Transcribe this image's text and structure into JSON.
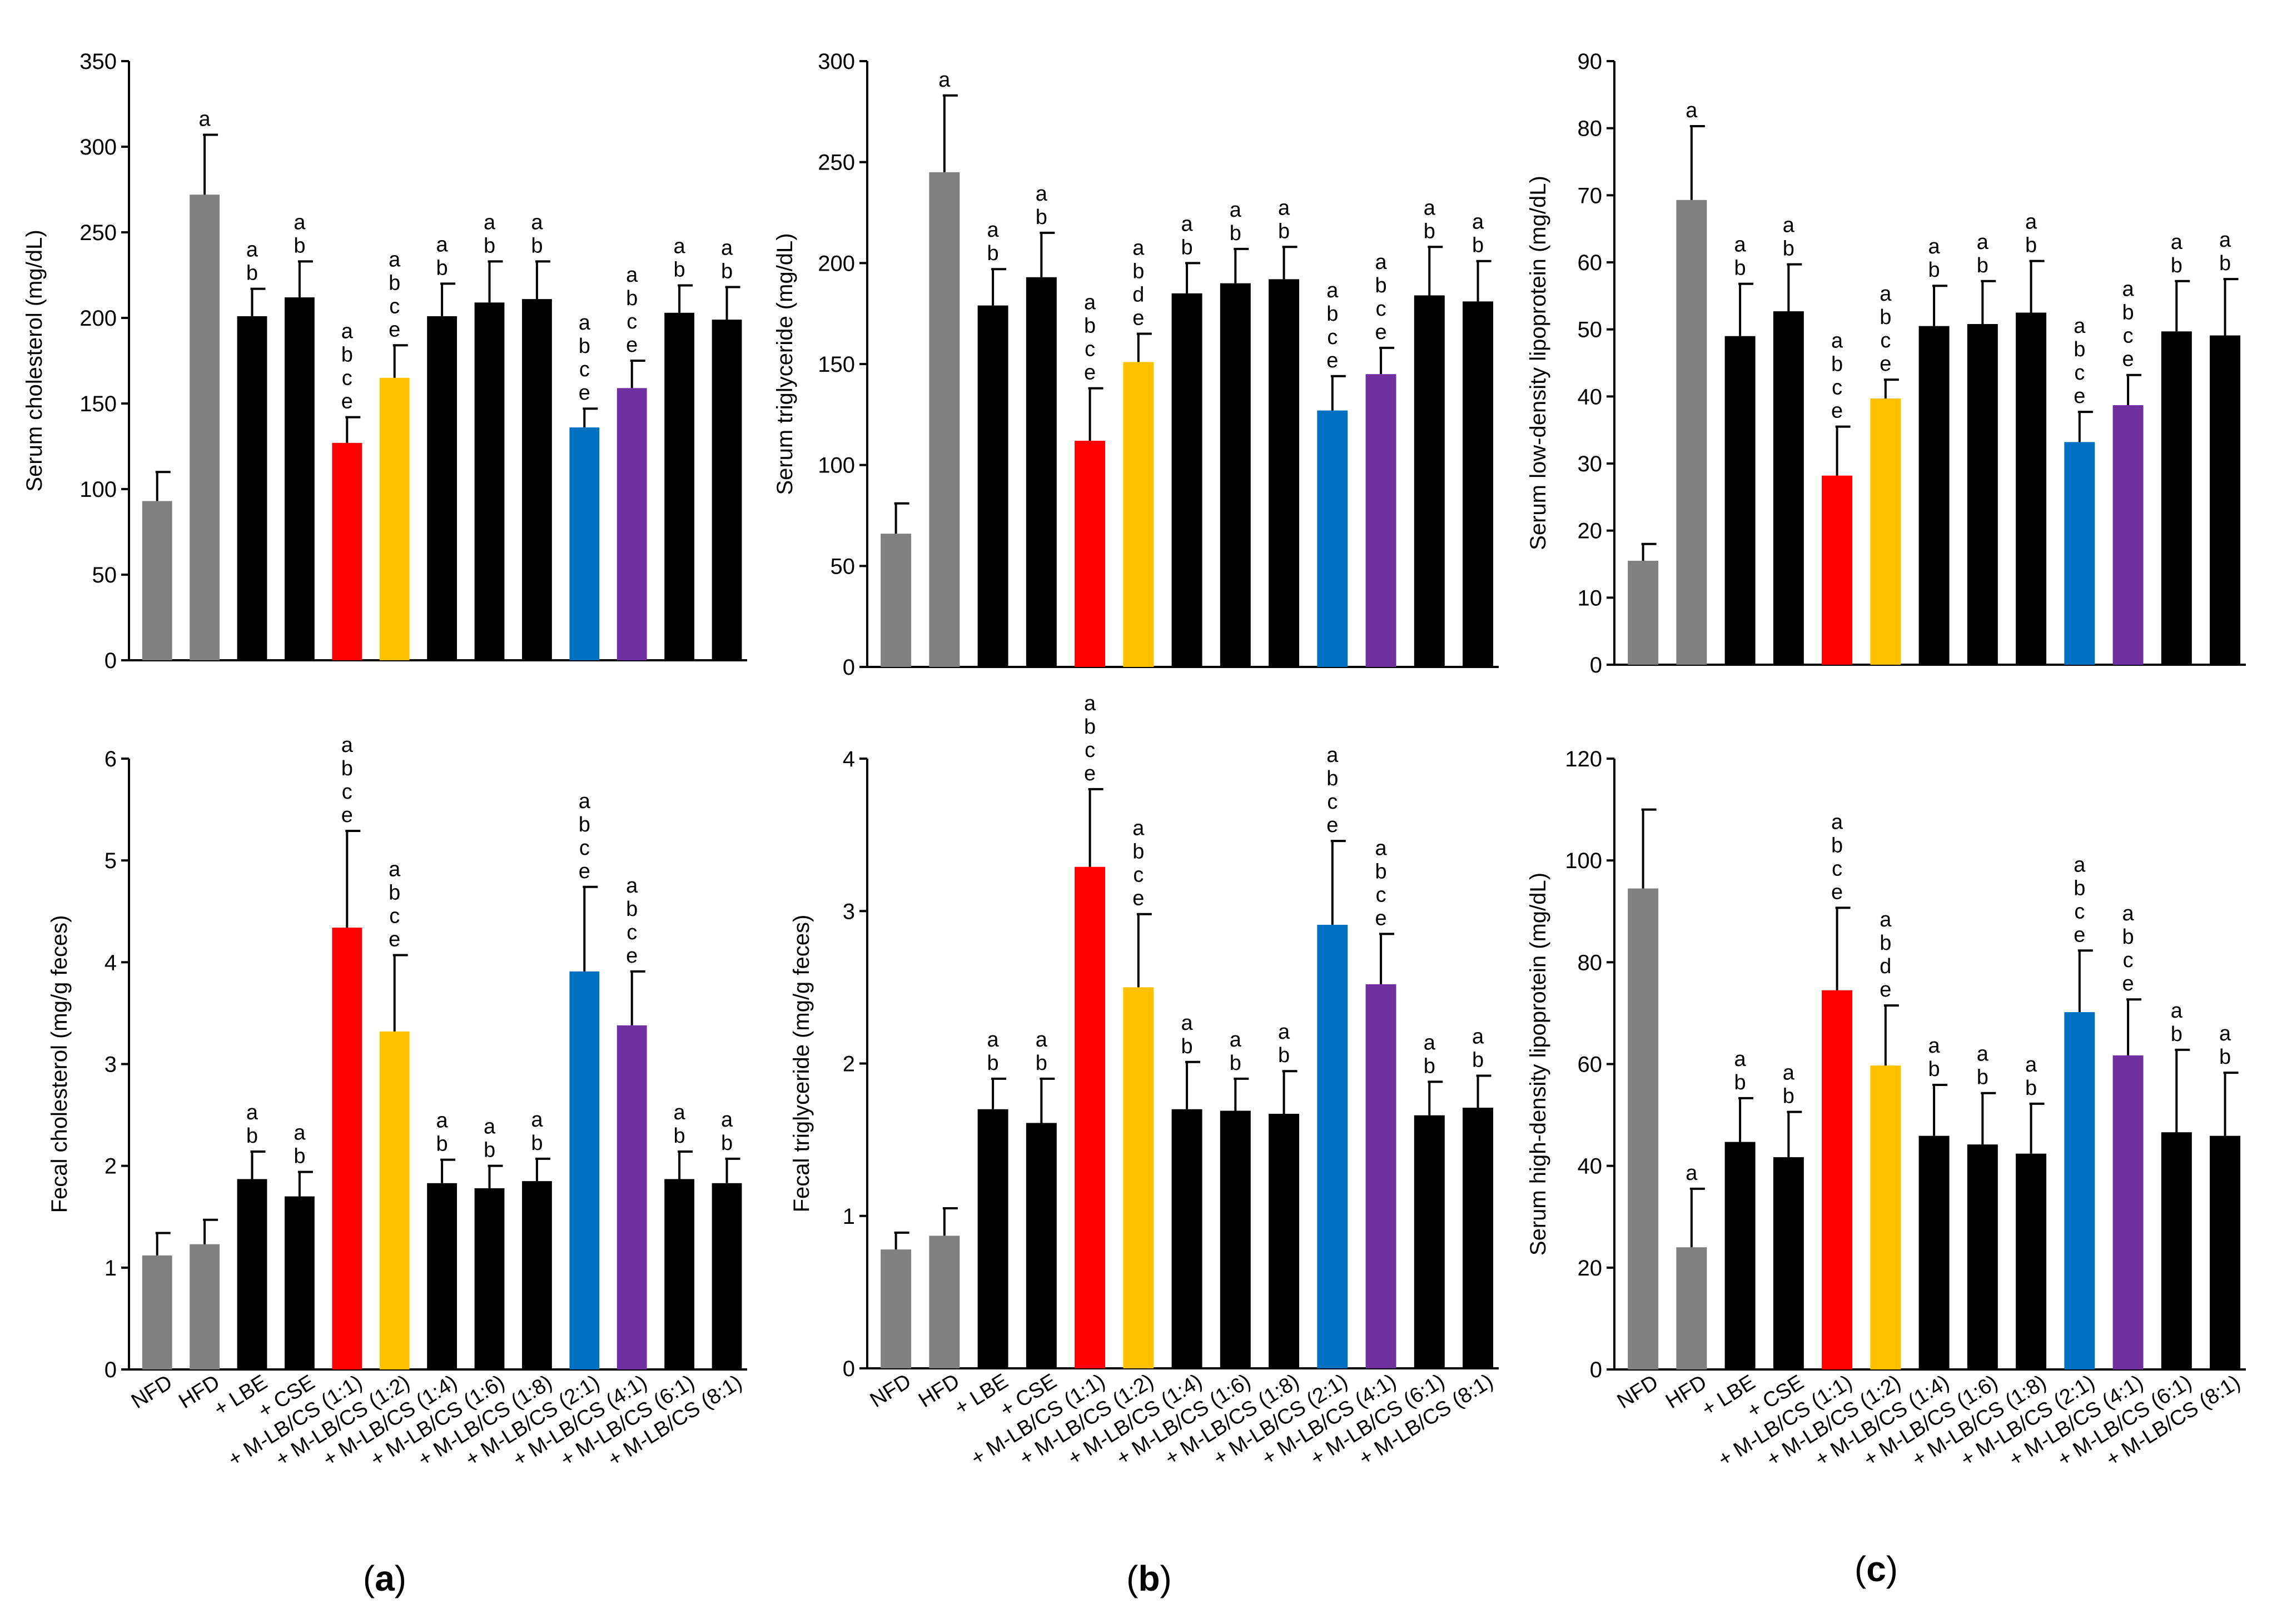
{
  "figure": {
    "categories": [
      "NFD",
      "HFD",
      "+ LBE",
      "+ CSE",
      "+ M-LB/CS (1:1)",
      "+ M-LB/CS (1:2)",
      "+ M-LB/CS (1:4)",
      "+ M-LB/CS (1:6)",
      "+ M-LB/CS (1:8)",
      "+ M-LB/CS (2:1)",
      "+ M-LB/CS (4:1)",
      "+ M-LB/CS (6:1)",
      "+ M-LB/CS (8:1)"
    ],
    "bar_colors": [
      "#808080",
      "#808080",
      "#000000",
      "#000000",
      "#ff0000",
      "#ffc000",
      "#000000",
      "#000000",
      "#000000",
      "#0070c0",
      "#7030a0",
      "#000000",
      "#000000"
    ],
    "panel_labels": [
      {
        "open": "(",
        "letter": "a",
        "close": ")"
      },
      {
        "open": "(",
        "letter": "b",
        "close": ")"
      },
      {
        "open": "(",
        "letter": "c",
        "close": ")"
      }
    ]
  },
  "chart_data": [
    {
      "type": "bar",
      "title": "",
      "xlabel": "",
      "ylabel": "Serum cholesterol (mg/dL)",
      "ylim": [
        0,
        350
      ],
      "yticks": [
        0,
        50,
        100,
        150,
        200,
        250,
        300,
        350
      ],
      "values": [
        93,
        272,
        201,
        212,
        127,
        165,
        201,
        209,
        211,
        136,
        159,
        203,
        199
      ],
      "errors": [
        17,
        35,
        16,
        21,
        15,
        19,
        19,
        24,
        22,
        11,
        16,
        16,
        19
      ],
      "significance": [
        "",
        "a",
        "ab",
        "ab",
        "abce",
        "abce",
        "ab",
        "ab",
        "ab",
        "abce",
        "abce",
        "ab",
        "ab"
      ],
      "show_categories": false
    },
    {
      "type": "bar",
      "title": "",
      "xlabel": "",
      "ylabel": "Serum triglyceride (mg/dL)",
      "ylim": [
        0,
        300
      ],
      "yticks": [
        0,
        50,
        100,
        150,
        200,
        250,
        300
      ],
      "values": [
        66,
        245,
        179,
        193,
        112,
        151,
        185,
        190,
        192,
        127,
        145,
        184,
        181
      ],
      "errors": [
        15,
        38,
        18,
        22,
        26,
        14,
        15,
        17,
        16,
        17,
        13,
        24,
        20
      ],
      "significance": [
        "",
        "a",
        "ab",
        "ab",
        "abce",
        "abde",
        "ab",
        "ab",
        "ab",
        "abce",
        "abce",
        "ab",
        "ab"
      ],
      "show_categories": false
    },
    {
      "type": "bar",
      "title": "",
      "xlabel": "",
      "ylabel": "Serum low-density lipoprotein (mg/dL)",
      "ylim": [
        0,
        90
      ],
      "yticks": [
        0,
        10,
        20,
        30,
        40,
        50,
        60,
        70,
        80,
        90
      ],
      "values": [
        15.5,
        69.3,
        49,
        52.7,
        28.2,
        39.7,
        50.5,
        50.8,
        52.5,
        33.2,
        38.7,
        49.7,
        49.1
      ],
      "errors": [
        2.5,
        11,
        7.8,
        7,
        7.3,
        2.8,
        6,
        6.4,
        7.7,
        4.5,
        4.5,
        7.5,
        8.4
      ],
      "significance": [
        "",
        "a",
        "ab",
        "ab",
        "abce",
        "abce",
        "ab",
        "ab",
        "ab",
        "abce",
        "abce",
        "ab",
        "ab"
      ],
      "show_categories": false
    },
    {
      "type": "bar",
      "title": "",
      "xlabel": "",
      "ylabel": "Fecal cholesterol (mg/g feces)",
      "ylim": [
        0,
        6
      ],
      "yticks": [
        0,
        1,
        2,
        3,
        4,
        5,
        6
      ],
      "values": [
        1.12,
        1.23,
        1.87,
        1.7,
        4.34,
        3.32,
        1.83,
        1.78,
        1.85,
        3.91,
        3.38,
        1.87,
        1.83
      ],
      "errors": [
        0.22,
        0.24,
        0.27,
        0.24,
        0.95,
        0.75,
        0.23,
        0.22,
        0.22,
        0.83,
        0.53,
        0.27,
        0.24
      ],
      "significance": [
        "",
        "",
        "ab",
        "ab",
        "abce",
        "abce",
        "ab",
        "ab",
        "ab",
        "abce",
        "abce",
        "ab",
        "ab"
      ],
      "show_categories": true
    },
    {
      "type": "bar",
      "title": "",
      "xlabel": "",
      "ylabel": "Fecal triglyceride (mg/g feces)",
      "ylim": [
        0,
        4
      ],
      "yticks": [
        0,
        1,
        2,
        3,
        4
      ],
      "values": [
        0.78,
        0.87,
        1.7,
        1.61,
        3.29,
        2.5,
        1.7,
        1.69,
        1.67,
        2.91,
        2.52,
        1.66,
        1.71
      ],
      "errors": [
        0.11,
        0.18,
        0.2,
        0.29,
        0.51,
        0.48,
        0.31,
        0.21,
        0.28,
        0.55,
        0.33,
        0.22,
        0.21
      ],
      "significance": [
        "",
        "",
        "ab",
        "ab",
        "abce",
        "abce",
        "ab",
        "ab",
        "ab",
        "abce",
        "abce",
        "ab",
        "ab"
      ],
      "show_categories": true
    },
    {
      "type": "bar",
      "title": "",
      "xlabel": "",
      "ylabel": "Serum high-density lipoprotein (mg/dL)",
      "ylim": [
        0,
        120
      ],
      "yticks": [
        0,
        20,
        40,
        60,
        80,
        100,
        120
      ],
      "values": [
        94.5,
        24,
        44.7,
        41.7,
        74.5,
        59.7,
        45.9,
        44.2,
        42.4,
        70.2,
        61.7,
        46.6,
        45.9
      ],
      "errors": [
        15.5,
        11.5,
        8.6,
        8.9,
        16.2,
        11.8,
        10,
        10.1,
        9.8,
        12.1,
        11,
        16.2,
        12.4
      ],
      "significance": [
        "",
        "a",
        "ab",
        "ab",
        "abce",
        "abde",
        "ab",
        "ab",
        "ab",
        "abce",
        "abce",
        "ab",
        "ab"
      ],
      "show_categories": true
    }
  ]
}
